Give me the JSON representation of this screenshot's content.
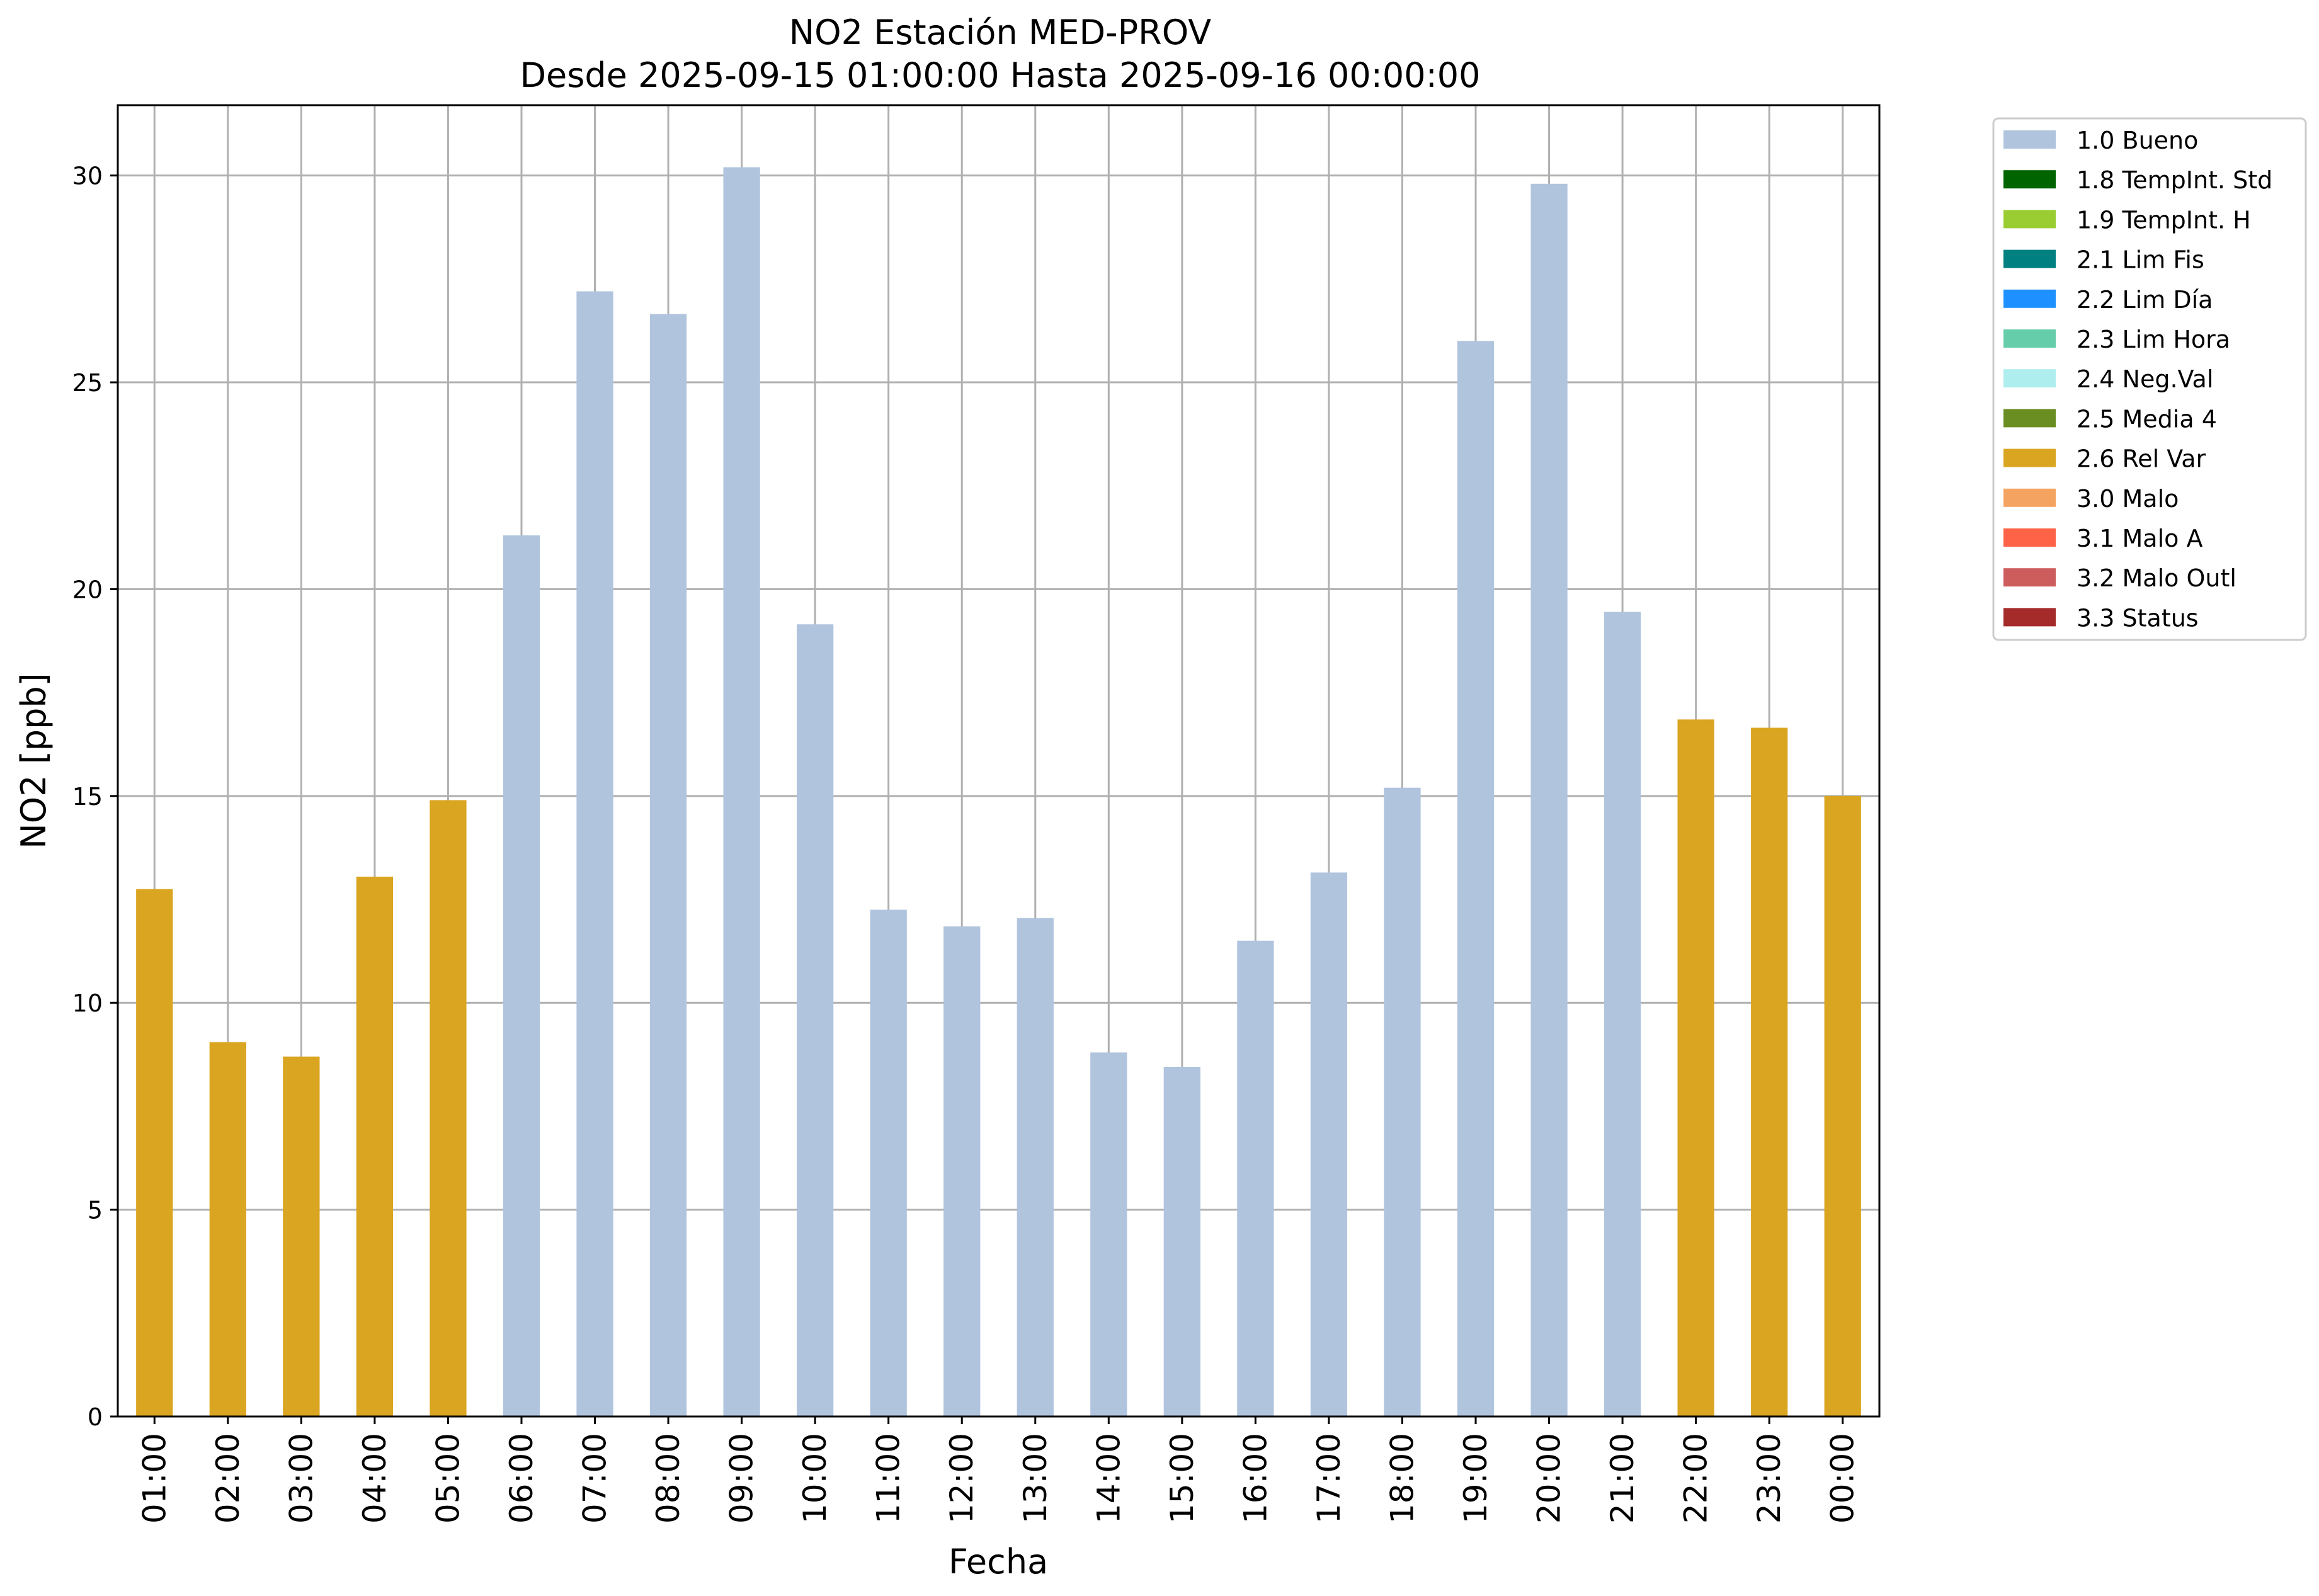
{
  "chart_data": {
    "type": "bar",
    "title": "NO2 Estación MED-PROV",
    "subtitle": "Desde 2025-09-15 01:00:00 Hasta 2025-09-16 00:00:00",
    "xlabel": "Fecha",
    "ylabel": "NO2 [ppb]",
    "ylim": [
      0,
      31.7
    ],
    "yticks": [
      0,
      5,
      10,
      15,
      20,
      25,
      30
    ],
    "grid": true,
    "legend_position": "outside-top-right",
    "categories": [
      "01:00",
      "02:00",
      "03:00",
      "04:00",
      "05:00",
      "06:00",
      "07:00",
      "08:00",
      "09:00",
      "10:00",
      "11:00",
      "12:00",
      "13:00",
      "14:00",
      "15:00",
      "16:00",
      "17:00",
      "18:00",
      "19:00",
      "20:00",
      "21:00",
      "22:00",
      "23:00",
      "00:00"
    ],
    "values": [
      12.75,
      9.05,
      8.7,
      13.05,
      14.9,
      21.3,
      27.2,
      26.65,
      30.2,
      19.15,
      12.25,
      11.85,
      12.05,
      8.8,
      8.45,
      11.5,
      13.15,
      15.2,
      26.0,
      29.8,
      19.45,
      16.85,
      16.65,
      15.0
    ],
    "flags": [
      "2.6 Rel Var",
      "2.6 Rel Var",
      "2.6 Rel Var",
      "2.6 Rel Var",
      "2.6 Rel Var",
      "1.0 Bueno",
      "1.0 Bueno",
      "1.0 Bueno",
      "1.0 Bueno",
      "1.0 Bueno",
      "1.0 Bueno",
      "1.0 Bueno",
      "1.0 Bueno",
      "1.0 Bueno",
      "1.0 Bueno",
      "1.0 Bueno",
      "1.0 Bueno",
      "1.0 Bueno",
      "1.0 Bueno",
      "1.0 Bueno",
      "1.0 Bueno",
      "2.6 Rel Var",
      "2.6 Rel Var",
      "2.6 Rel Var"
    ],
    "legend": [
      {
        "label": "1.0 Bueno",
        "color": "#b0c4de"
      },
      {
        "label": "1.8 TempInt. Std",
        "color": "#006400"
      },
      {
        "label": "1.9 TempInt. H",
        "color": "#9acd32"
      },
      {
        "label": "2.1 Lim Fis",
        "color": "#008080"
      },
      {
        "label": "2.2 Lim Día",
        "color": "#1e90ff"
      },
      {
        "label": "2.3 Lim Hora",
        "color": "#66cdaa"
      },
      {
        "label": "2.4 Neg.Val",
        "color": "#afeeee"
      },
      {
        "label": "2.5 Media 4",
        "color": "#6b8e23"
      },
      {
        "label": "2.6 Rel Var",
        "color": "#daa520"
      },
      {
        "label": "3.0 Malo",
        "color": "#f4a460"
      },
      {
        "label": "3.1 Malo A",
        "color": "#ff6347"
      },
      {
        "label": "3.2 Malo Outl",
        "color": "#cd5c5c"
      },
      {
        "label": "3.3 Status",
        "color": "#a52a2a"
      }
    ]
  }
}
